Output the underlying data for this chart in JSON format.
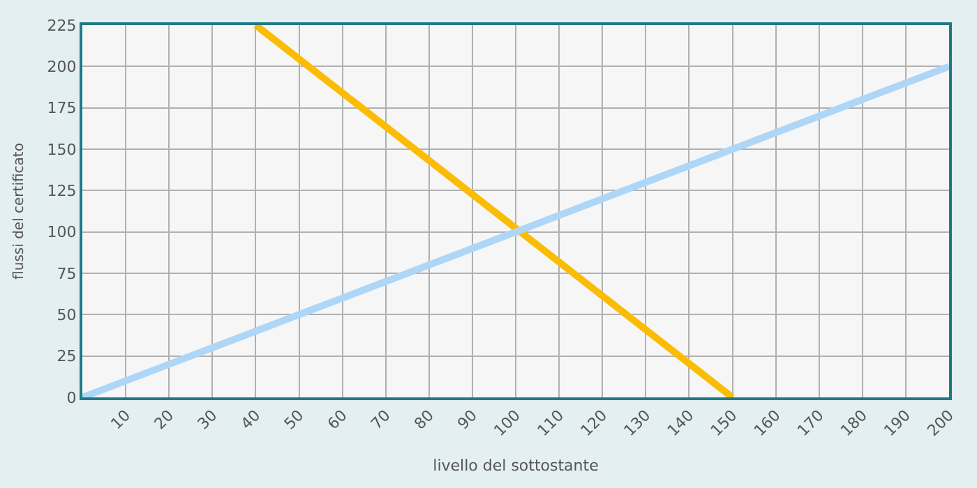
{
  "chart_data": {
    "type": "line",
    "xlabel": "livello del sottostante",
    "ylabel": "flussi del certificato",
    "xlim": [
      0,
      200
    ],
    "xticks": [
      10,
      20,
      30,
      40,
      50,
      60,
      70,
      80,
      90,
      100,
      110,
      120,
      130,
      140,
      150,
      160,
      170,
      180,
      190,
      200
    ],
    "ylim": [
      0,
      225
    ],
    "yticks": [
      0,
      25,
      50,
      75,
      100,
      125,
      150,
      175,
      200,
      225
    ],
    "grid": true,
    "marker": "none",
    "line_style": "solid",
    "series": [
      {
        "color": "#fbbc05",
        "x": [
          40,
          150
        ],
        "values": [
          225,
          0
        ]
      },
      {
        "color": "#aed6f7",
        "x": [
          0,
          200
        ],
        "values": [
          0,
          200
        ]
      }
    ]
  }
}
